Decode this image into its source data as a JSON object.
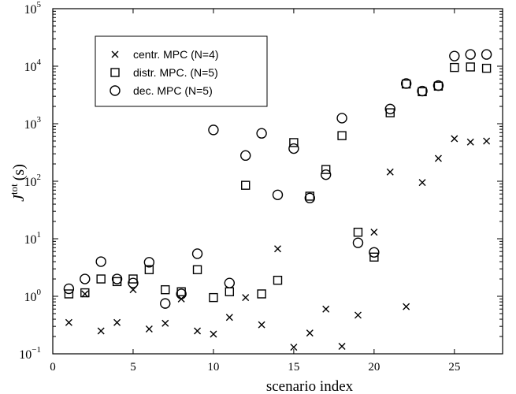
{
  "chart_data": {
    "type": "scatter",
    "xlabel": "scenario index",
    "ylabel_main": "J",
    "ylabel_sup": "tot",
    "ylabel_unit": "(s)",
    "xlim": [
      0,
      28
    ],
    "ylim": [
      0.1,
      100000
    ],
    "yscale": "log",
    "xticks": [
      0,
      5,
      10,
      15,
      20,
      25
    ],
    "xtick_labels": [
      "0",
      "5",
      "10",
      "15",
      "20",
      "25"
    ],
    "yticks": [
      0.1,
      1,
      10,
      100,
      1000,
      10000,
      100000
    ],
    "ytick_bases": [
      "10",
      "10",
      "10",
      "10",
      "10",
      "10",
      "10"
    ],
    "ytick_exponents": [
      "−1",
      "0",
      "1",
      "2",
      "3",
      "4",
      "5"
    ],
    "legend_position": "top-left",
    "grid": false,
    "series": [
      {
        "name": "centr. MPC (N=4)",
        "marker": "x",
        "x": [
          1,
          2,
          3,
          4,
          5,
          6,
          7,
          8,
          9,
          10,
          11,
          12,
          13,
          14,
          15,
          16,
          17,
          18,
          19,
          20,
          21,
          22,
          23,
          24,
          25,
          26,
          27
        ],
        "y": [
          0.35,
          1.1,
          0.25,
          0.35,
          1.3,
          0.27,
          0.34,
          0.9,
          0.25,
          0.22,
          0.43,
          0.95,
          0.32,
          6.7,
          0.13,
          0.23,
          0.6,
          0.135,
          0.47,
          13,
          145,
          0.66,
          95,
          250,
          550,
          480,
          500
        ]
      },
      {
        "name": "distr. MPC. (N=5)",
        "marker": "square",
        "x": [
          1,
          2,
          3,
          4,
          5,
          6,
          7,
          8,
          9,
          10,
          11,
          12,
          13,
          14,
          15,
          16,
          17,
          18,
          19,
          20,
          21,
          22,
          23,
          24,
          25,
          26,
          27
        ],
        "y": [
          1.1,
          1.15,
          2.0,
          1.8,
          2.0,
          2.9,
          1.3,
          1.2,
          2.9,
          0.95,
          1.2,
          85,
          1.1,
          1.9,
          470,
          55,
          160,
          620,
          13,
          4.8,
          1550,
          4900,
          3600,
          4500,
          9500,
          9700,
          9200
        ]
      },
      {
        "name": "dec. MPC (N=5)",
        "marker": "circle",
        "x": [
          1,
          2,
          3,
          4,
          5,
          6,
          7,
          8,
          9,
          10,
          11,
          12,
          13,
          14,
          15,
          16,
          17,
          18,
          19,
          20,
          21,
          22,
          23,
          24,
          25,
          26,
          27
        ],
        "y": [
          1.35,
          2.0,
          4.0,
          2.0,
          1.7,
          3.9,
          0.75,
          1.1,
          5.5,
          780,
          1.7,
          280,
          680,
          58,
          370,
          51,
          130,
          1250,
          8.5,
          5.8,
          1800,
          5000,
          3700,
          4600,
          15000,
          16000,
          16000
        ]
      }
    ]
  }
}
